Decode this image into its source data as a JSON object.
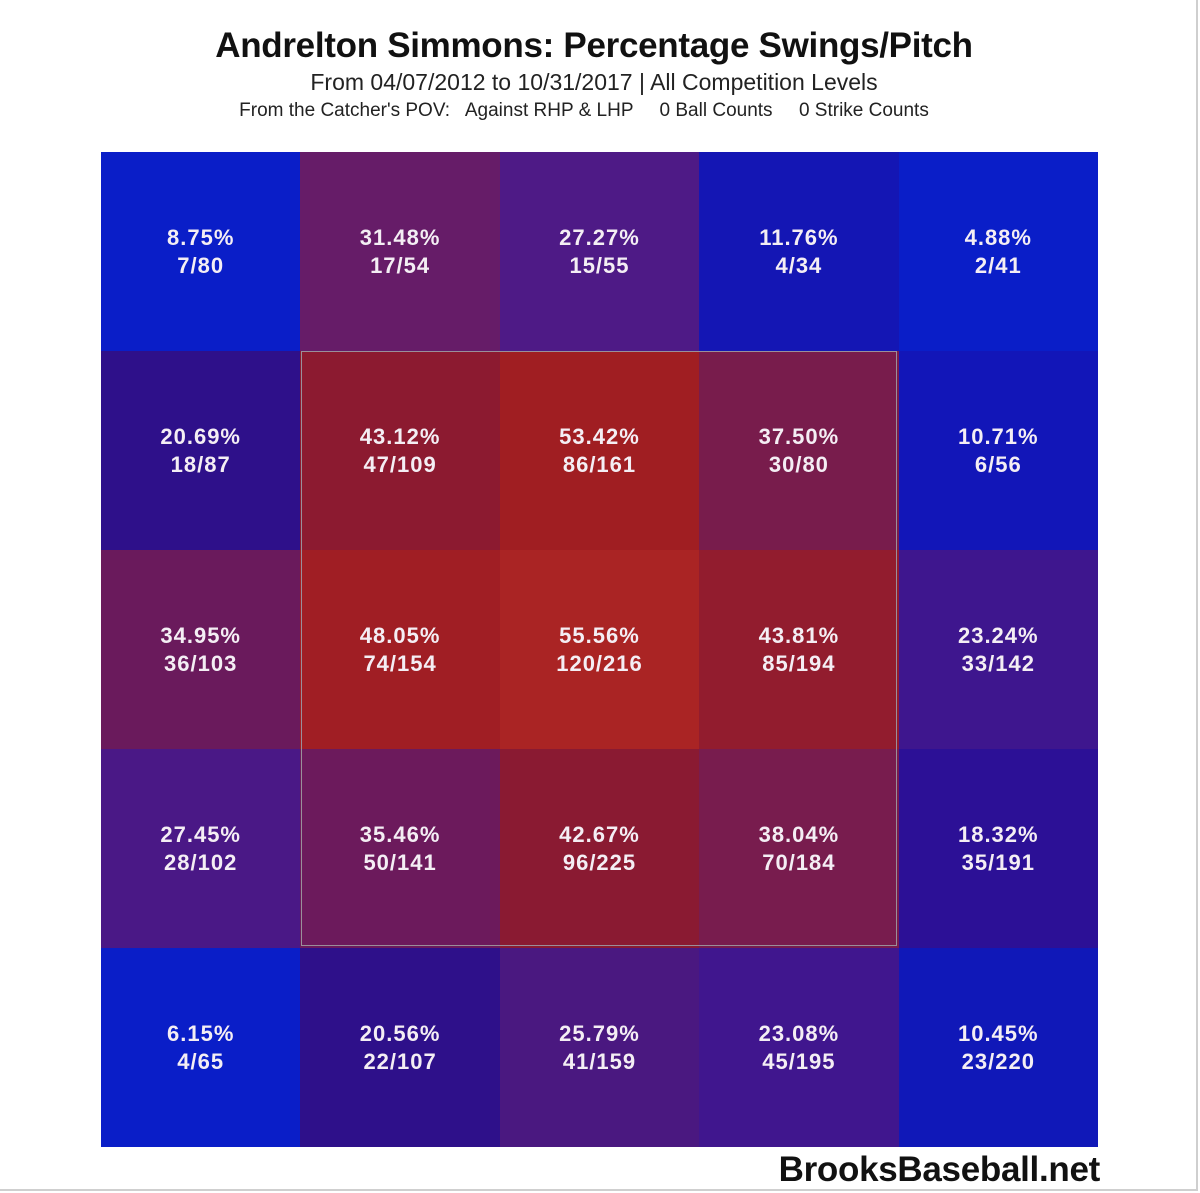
{
  "header": {
    "title": "Andrelton Simmons: Percentage Swings/Pitch",
    "subtitle": "From 04/07/2012 to 10/31/2017 | All Competition Levels",
    "filters": "From the Catcher's POV:   Against RHP & LHP     0 Ball Counts     0 Strike Counts"
  },
  "footer": {
    "brand": "BrooksBaseball.net"
  },
  "cells": [
    {
      "pct": "8.75%",
      "frac": "7/80",
      "color": "#0a1ec8"
    },
    {
      "pct": "31.48%",
      "frac": "17/54",
      "color": "#661c68"
    },
    {
      "pct": "27.27%",
      "frac": "15/55",
      "color": "#4e1a86"
    },
    {
      "pct": "11.76%",
      "frac": "4/34",
      "color": "#1416b4"
    },
    {
      "pct": "4.88%",
      "frac": "2/41",
      "color": "#0a1ec8"
    },
    {
      "pct": "20.69%",
      "frac": "18/87",
      "color": "#2e108a"
    },
    {
      "pct": "43.12%",
      "frac": "47/109",
      "color": "#8c1a30"
    },
    {
      "pct": "53.42%",
      "frac": "86/161",
      "color": "#a01e22"
    },
    {
      "pct": "37.50%",
      "frac": "30/80",
      "color": "#781c4c"
    },
    {
      "pct": "10.71%",
      "frac": "6/56",
      "color": "#1216b8"
    },
    {
      "pct": "34.95%",
      "frac": "36/103",
      "color": "#6a1a5c"
    },
    {
      "pct": "48.05%",
      "frac": "74/154",
      "color": "#a01e24"
    },
    {
      "pct": "55.56%",
      "frac": "120/216",
      "color": "#aa2424"
    },
    {
      "pct": "43.81%",
      "frac": "85/194",
      "color": "#921c2e"
    },
    {
      "pct": "23.24%",
      "frac": "33/142",
      "color": "#3e168e"
    },
    {
      "pct": "27.45%",
      "frac": "28/102",
      "color": "#4a1886"
    },
    {
      "pct": "35.46%",
      "frac": "50/141",
      "color": "#6c1a5c"
    },
    {
      "pct": "42.67%",
      "frac": "96/225",
      "color": "#8a1a32"
    },
    {
      "pct": "38.04%",
      "frac": "70/184",
      "color": "#781c4e"
    },
    {
      "pct": "18.32%",
      "frac": "35/191",
      "color": "#2c1096"
    },
    {
      "pct": "6.15%",
      "frac": "4/65",
      "color": "#0a1ec8"
    },
    {
      "pct": "20.56%",
      "frac": "22/107",
      "color": "#2e108a"
    },
    {
      "pct": "25.79%",
      "frac": "41/159",
      "color": "#4a1880"
    },
    {
      "pct": "23.08%",
      "frac": "45/195",
      "color": "#40168e"
    },
    {
      "pct": "10.45%",
      "frac": "23/220",
      "color": "#1018b8"
    }
  ],
  "chart_data": {
    "type": "heatmap",
    "title": "Andrelton Simmons: Percentage Swings/Pitch",
    "subtitle": "From 04/07/2012 to 10/31/2017 | All Competition Levels",
    "annotations": [
      "From the Catcher's POV:",
      "Against RHP & LHP",
      "0 Ball Counts",
      "0 Strike Counts"
    ],
    "rows": 5,
    "cols": 5,
    "strike_zone": {
      "rows": [
        1,
        3
      ],
      "cols": [
        1,
        3
      ]
    },
    "values_pct": [
      [
        8.75,
        31.48,
        27.27,
        11.76,
        4.88
      ],
      [
        20.69,
        43.12,
        53.42,
        37.5,
        10.71
      ],
      [
        34.95,
        48.05,
        55.56,
        43.81,
        23.24
      ],
      [
        27.45,
        35.46,
        42.67,
        38.04,
        18.32
      ],
      [
        6.15,
        20.56,
        25.79,
        23.08,
        10.45
      ]
    ],
    "swings": [
      [
        7,
        17,
        15,
        4,
        2
      ],
      [
        18,
        47,
        86,
        30,
        6
      ],
      [
        36,
        74,
        120,
        85,
        33
      ],
      [
        28,
        50,
        96,
        70,
        35
      ],
      [
        4,
        22,
        41,
        45,
        23
      ]
    ],
    "pitches": [
      [
        80,
        54,
        55,
        34,
        41
      ],
      [
        87,
        109,
        161,
        80,
        56
      ],
      [
        103,
        154,
        216,
        194,
        142
      ],
      [
        102,
        141,
        225,
        184,
        191
      ],
      [
        65,
        107,
        159,
        195,
        220
      ]
    ],
    "color_scale": {
      "low": "#0a1ec8",
      "high": "#aa2424"
    },
    "source": "BrooksBaseball.net"
  }
}
